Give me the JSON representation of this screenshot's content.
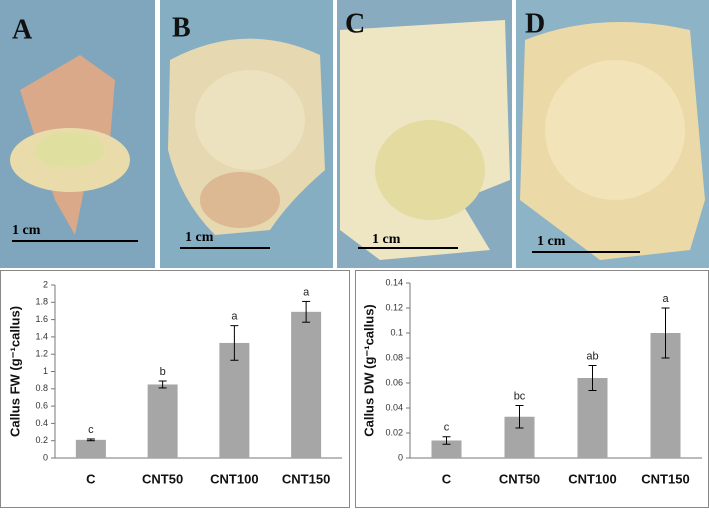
{
  "panels": [
    {
      "label": "A",
      "scale": "1 cm"
    },
    {
      "label": "B",
      "scale": "1 cm"
    },
    {
      "label": "C",
      "scale": "1 cm"
    },
    {
      "label": "D",
      "scale": "1 cm"
    }
  ],
  "chart_data": [
    {
      "type": "bar",
      "ylabel": "Callus FW (g⁻¹callus)",
      "categories": [
        "C",
        "CNT50",
        "CNT100",
        "CNT150"
      ],
      "values": [
        0.21,
        0.85,
        1.33,
        1.69
      ],
      "errors": [
        0.01,
        0.04,
        0.2,
        0.12
      ],
      "significance": [
        "c",
        "b",
        "a",
        "a"
      ],
      "color": "#a6a6a6",
      "ylim": [
        0,
        2
      ],
      "yticks": [
        0,
        0.2,
        0.4,
        0.6,
        0.8,
        1,
        1.2,
        1.4,
        1.6,
        1.8,
        2
      ]
    },
    {
      "type": "bar",
      "ylabel": "Callus DW (g⁻¹callus)",
      "categories": [
        "C",
        "CNT50",
        "CNT100",
        "CNT150"
      ],
      "values": [
        0.014,
        0.033,
        0.064,
        0.1
      ],
      "errors": [
        0.003,
        0.009,
        0.01,
        0.02
      ],
      "significance": [
        "c",
        "bc",
        "ab",
        "a"
      ],
      "color": "#a6a6a6",
      "ylim": [
        0,
        0.14
      ],
      "yticks": [
        0,
        0.02,
        0.04,
        0.06,
        0.08,
        0.1,
        0.12,
        0.14
      ]
    }
  ]
}
